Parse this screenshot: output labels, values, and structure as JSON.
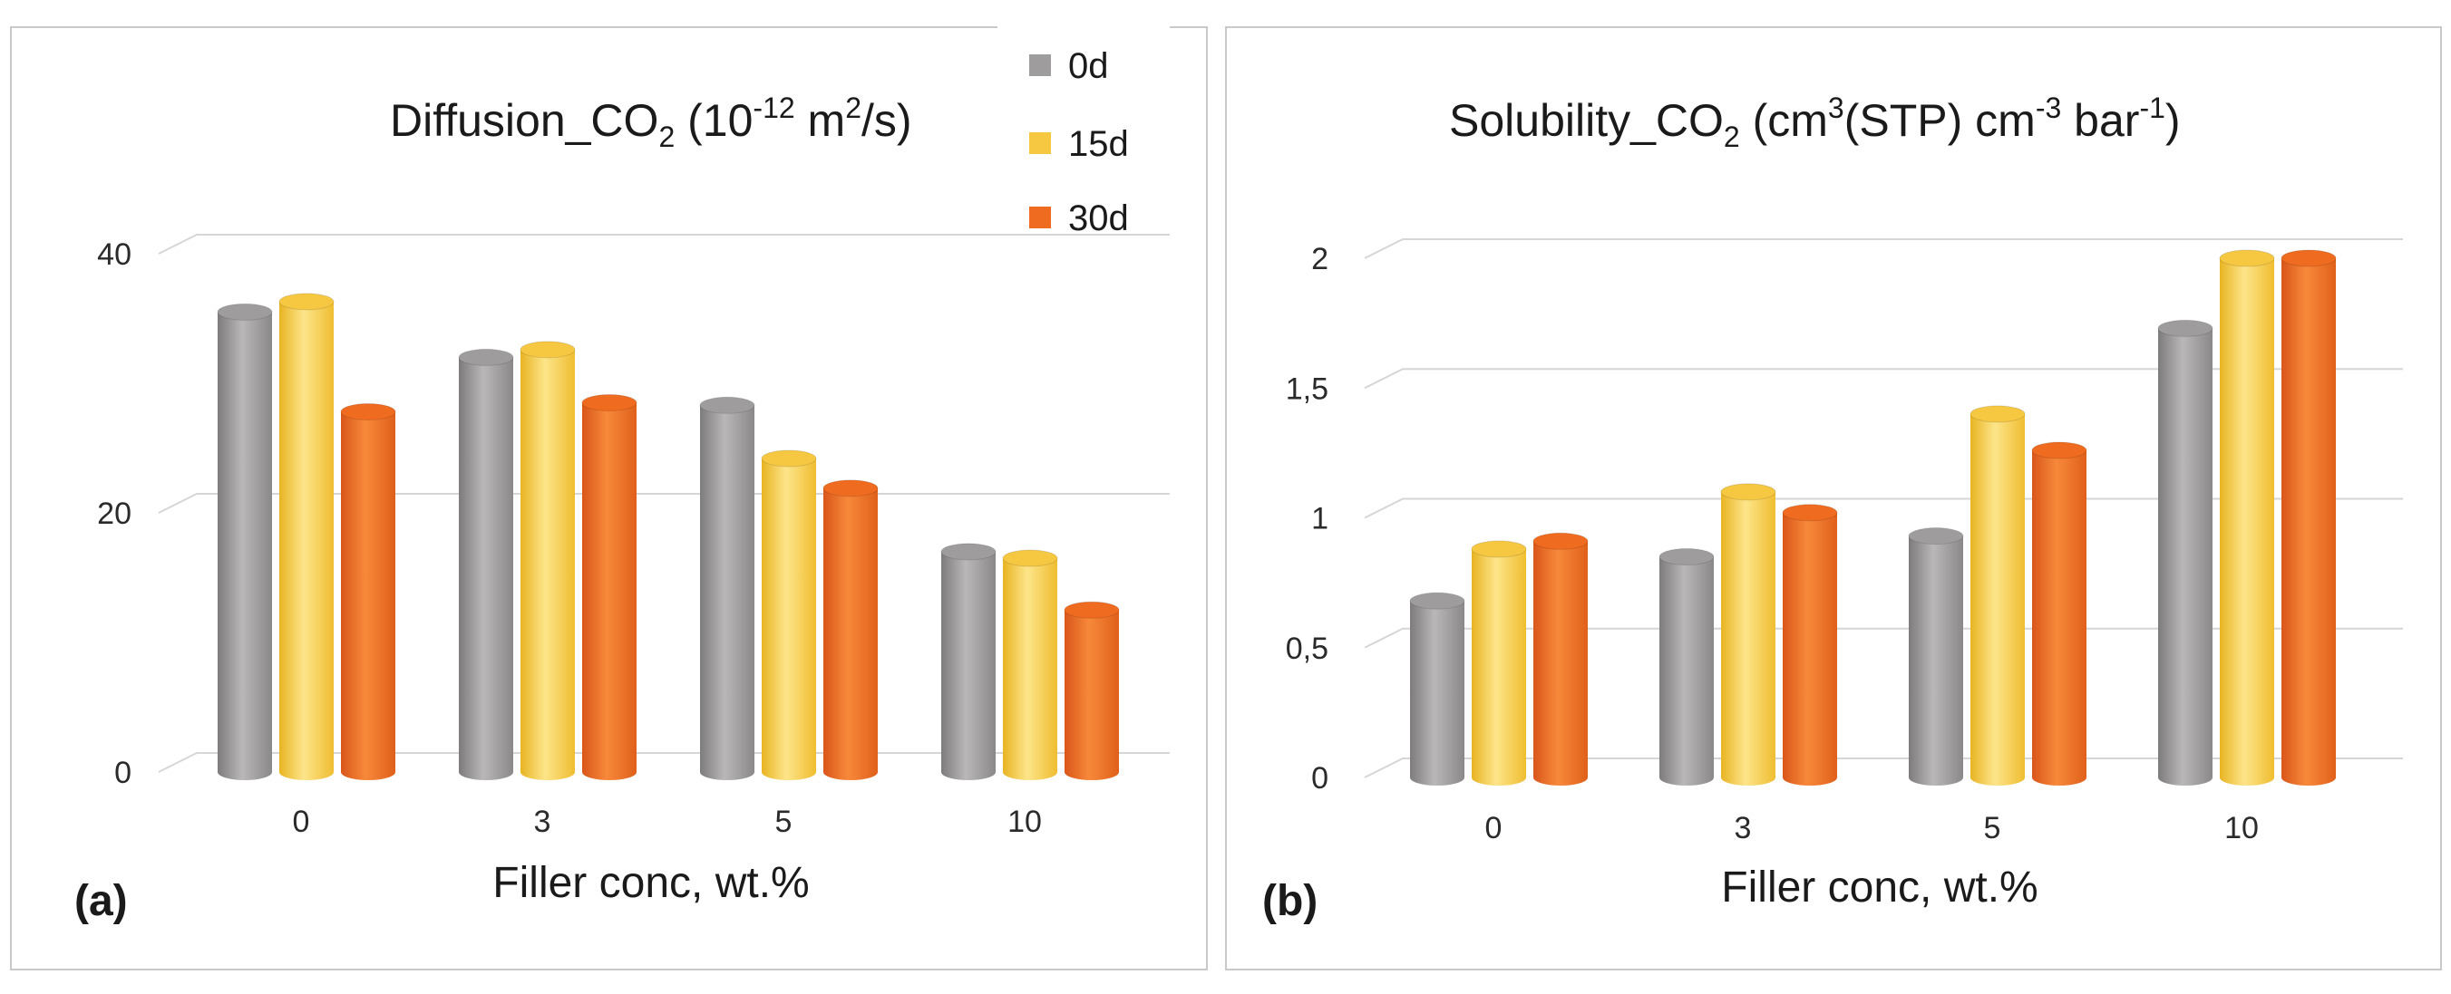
{
  "colors": {
    "0d": "#9e9c9c",
    "15d": "#f6c842",
    "30d": "#ef6b1f"
  },
  "legend": [
    "0d",
    "15d",
    "30d"
  ],
  "chart_data": [
    {
      "type": "bar",
      "panel_label": "(a)",
      "title_main": "Diffusion_CO",
      "title_sub": "2",
      "title_paren": "(10",
      "title_exp": "-12",
      "title_unit": " m",
      "title_unit_exp": "2",
      "title_unit_tail": "/s)",
      "xlabel": "Filler conc, wt.%",
      "ylabel": "",
      "categories": [
        "0",
        "3",
        "5",
        "10"
      ],
      "yticks": [
        "0",
        "20",
        "40"
      ],
      "ytick_values": [
        0,
        20,
        40
      ],
      "ylim": [
        0,
        40
      ],
      "series": [
        {
          "name": "0d",
          "values": [
            35.5,
            32.0,
            28.3,
            17.0
          ]
        },
        {
          "name": "15d",
          "values": [
            36.3,
            32.6,
            24.2,
            16.5
          ]
        },
        {
          "name": "30d",
          "values": [
            27.8,
            28.5,
            21.9,
            12.5
          ]
        }
      ]
    },
    {
      "type": "bar",
      "panel_label": "(b)",
      "title_main": "Solubility_CO",
      "title_sub": "2",
      "title_paren": "(cm",
      "title_exp": "3",
      "title_unit": "(STP)  cm",
      "title_unit_exp": "-3",
      "title_unit_tail": " bar",
      "title_tail_exp": "-1",
      "title_close": ")",
      "xlabel": "Filler conc, wt.%",
      "ylabel": "",
      "categories": [
        "0",
        "3",
        "5",
        "10"
      ],
      "yticks": [
        "0",
        "0,5",
        "1",
        "1,5",
        "2"
      ],
      "ytick_values": [
        0,
        0.5,
        1,
        1.5,
        2
      ],
      "ylim": [
        0,
        2
      ],
      "series": [
        {
          "name": "0d",
          "values": [
            0.68,
            0.85,
            0.93,
            1.73
          ]
        },
        {
          "name": "15d",
          "values": [
            0.88,
            1.1,
            1.4,
            2.0
          ]
        },
        {
          "name": "30d",
          "values": [
            0.91,
            1.02,
            1.26,
            2.0
          ]
        }
      ]
    }
  ]
}
